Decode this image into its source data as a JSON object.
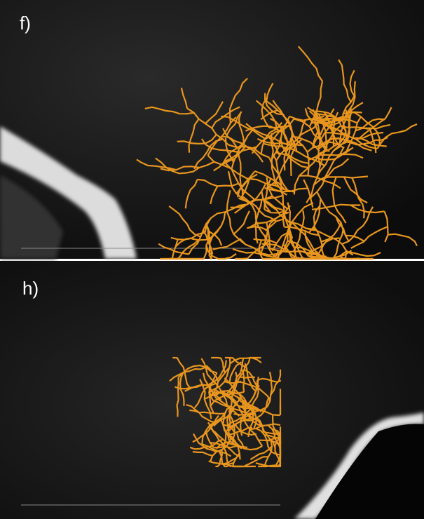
{
  "panels": [
    {
      "label": "f)"
    },
    {
      "label": "h)"
    }
  ]
}
